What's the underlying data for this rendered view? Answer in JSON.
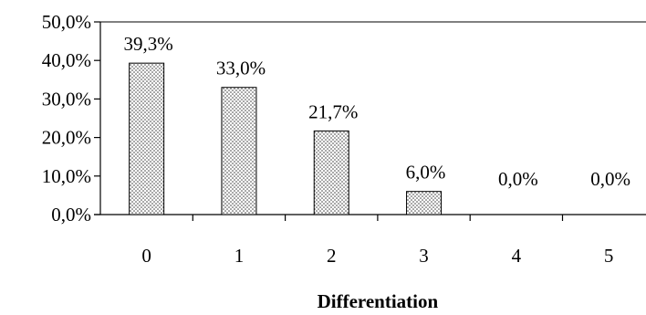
{
  "chart_data": {
    "type": "bar",
    "categories": [
      "0",
      "1",
      "2",
      "3",
      "4",
      "5"
    ],
    "values": [
      39.3,
      33.0,
      21.7,
      6.0,
      0.0,
      0.0
    ],
    "value_labels": [
      "39,3%",
      "33,0%",
      "21,7%",
      "6,0%",
      "0,0%",
      "0,0%"
    ],
    "y_ticks": [
      0,
      10,
      20,
      30,
      40,
      50
    ],
    "y_tick_labels": [
      "0,0%",
      "10,0%",
      "20,0%",
      "30,0%",
      "40,0%",
      "50,0%"
    ],
    "ylim": [
      0,
      50
    ],
    "xlabel": "Differentiation",
    "ylabel": "",
    "title": "",
    "grid": false,
    "bar_fill": "dotted",
    "colors": {
      "bar_background": "#ffffff",
      "bar_dots": "#333333",
      "axis": "#000000",
      "text": "#000000"
    }
  }
}
